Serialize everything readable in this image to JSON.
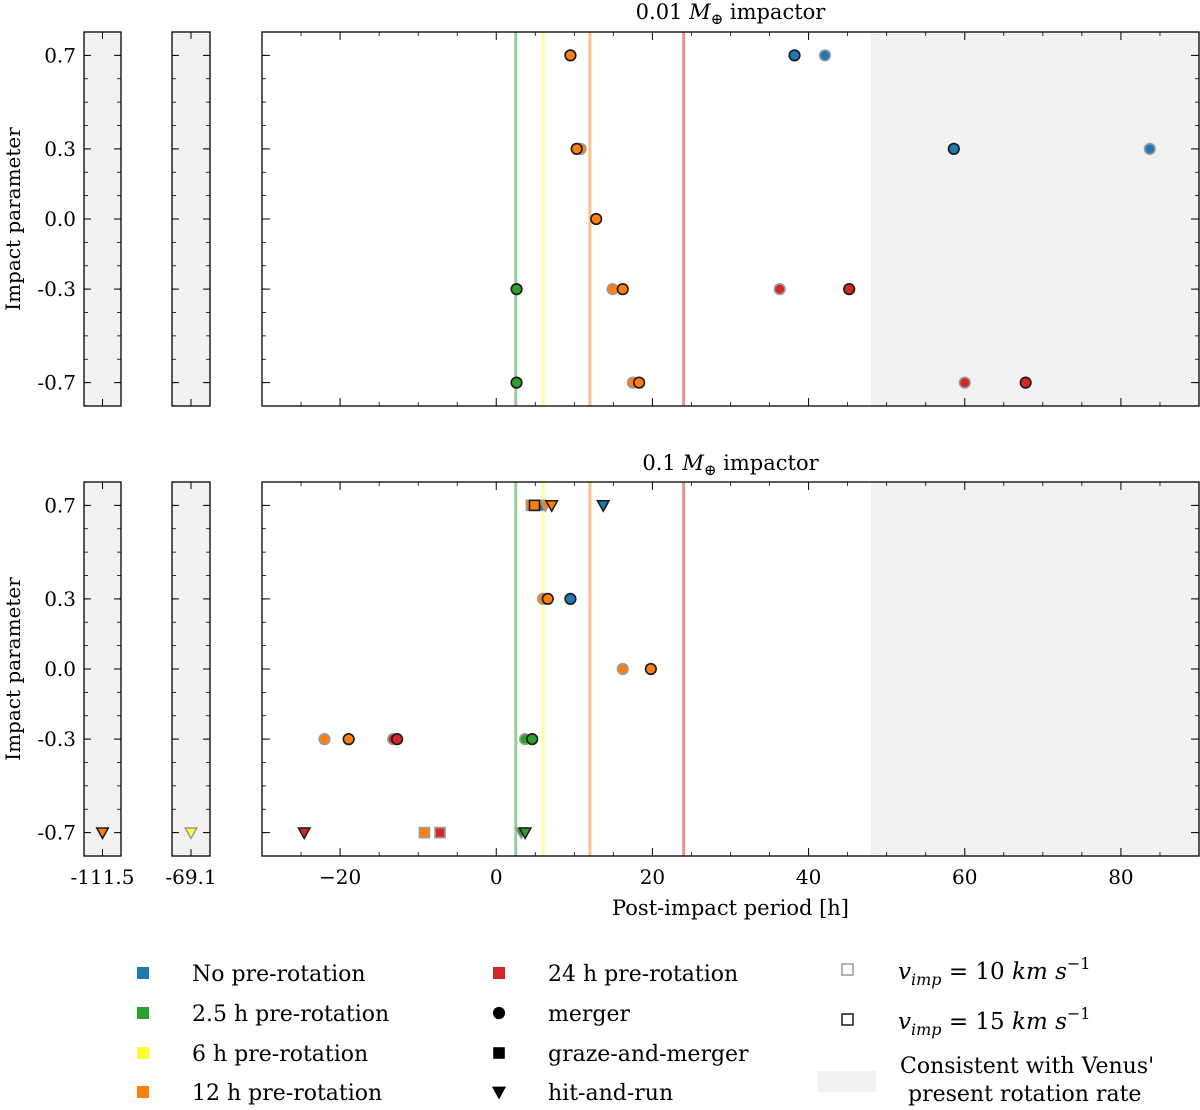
{
  "colors": {
    "no_prerot": "#1f77b4",
    "prerot_2_5": "#2ca02c",
    "prerot_6": "#ffff33",
    "prerot_12": "#ff7f0e",
    "prerot_24": "#d62728",
    "shade": "#f2f2f2"
  },
  "chart_data": [
    {
      "type": "scatter",
      "title_value": "0.01",
      "title_unit": "M",
      "title_sub": "⊕",
      "title_suffix": " impactor",
      "ylabel": "Impact parameter",
      "xlabel": "",
      "xlim": [
        -30,
        90
      ],
      "xticks": [],
      "ylim_b": [
        -0.8,
        0.8
      ],
      "yticks": [
        {
          "b": 0.7,
          "label": "0.7"
        },
        {
          "b": 0.3,
          "label": "0.3"
        },
        {
          "b": 0.0,
          "label": "0.0"
        },
        {
          "b": -0.3,
          "label": "-0.3"
        },
        {
          "b": -0.7,
          "label": "-0.7"
        }
      ],
      "shaded_region": [
        48,
        90
      ],
      "vlines": [
        {
          "x": 2.5,
          "color": "prerot_2_5"
        },
        {
          "x": 6,
          "color": "prerot_6"
        },
        {
          "x": 12,
          "color": "prerot_12"
        },
        {
          "x": 24,
          "color": "prerot_24"
        }
      ],
      "broken_axes": [
        {
          "tick_label": "",
          "points": []
        },
        {
          "tick_label": "",
          "points": []
        }
      ],
      "points": [
        {
          "x": 9.5,
          "b": 0.7,
          "color": "prerot_12",
          "outcome": "merger",
          "v": 10
        },
        {
          "x": 9.5,
          "b": 0.7,
          "color": "prerot_12",
          "outcome": "merger",
          "v": 15
        },
        {
          "x": 38.2,
          "b": 0.7,
          "color": "no_prerot",
          "outcome": "merger",
          "v": 15
        },
        {
          "x": 42.1,
          "b": 0.7,
          "color": "no_prerot",
          "outcome": "merger",
          "v": 10
        },
        {
          "x": 10.8,
          "b": 0.3,
          "color": "prerot_12",
          "outcome": "merger",
          "v": 10
        },
        {
          "x": 10.3,
          "b": 0.3,
          "color": "prerot_12",
          "outcome": "merger",
          "v": 15
        },
        {
          "x": 58.6,
          "b": 0.3,
          "color": "no_prerot",
          "outcome": "merger",
          "v": 15
        },
        {
          "x": 83.7,
          "b": 0.3,
          "color": "no_prerot",
          "outcome": "merger",
          "v": 10
        },
        {
          "x": 12.8,
          "b": 0.0,
          "color": "prerot_12",
          "outcome": "merger",
          "v": 15
        },
        {
          "x": 2.6,
          "b": -0.3,
          "color": "prerot_2_5",
          "outcome": "merger",
          "v": 15
        },
        {
          "x": 14.9,
          "b": -0.3,
          "color": "prerot_12",
          "outcome": "merger",
          "v": 10
        },
        {
          "x": 16.2,
          "b": -0.3,
          "color": "prerot_12",
          "outcome": "merger",
          "v": 15
        },
        {
          "x": 36.3,
          "b": -0.3,
          "color": "prerot_24",
          "outcome": "merger",
          "v": 10
        },
        {
          "x": 45.2,
          "b": -0.3,
          "color": "prerot_24",
          "outcome": "merger",
          "v": 15
        },
        {
          "x": 2.6,
          "b": -0.7,
          "color": "prerot_2_5",
          "outcome": "merger",
          "v": 15
        },
        {
          "x": 17.5,
          "b": -0.7,
          "color": "prerot_12",
          "outcome": "merger",
          "v": 10
        },
        {
          "x": 18.3,
          "b": -0.7,
          "color": "prerot_12",
          "outcome": "merger",
          "v": 15
        },
        {
          "x": 60.0,
          "b": -0.7,
          "color": "prerot_24",
          "outcome": "merger",
          "v": 10
        },
        {
          "x": 67.8,
          "b": -0.7,
          "color": "prerot_24",
          "outcome": "merger",
          "v": 15
        }
      ]
    },
    {
      "type": "scatter",
      "title_value": "0.1",
      "title_unit": "M",
      "title_sub": "⊕",
      "title_suffix": " impactor",
      "ylabel": "Impact parameter",
      "xlabel": "Post-impact period [h]",
      "xlim": [
        -30,
        90
      ],
      "xticks": [
        {
          "x": -20,
          "label": "−20"
        },
        {
          "x": 0,
          "label": "0"
        },
        {
          "x": 20,
          "label": "20"
        },
        {
          "x": 40,
          "label": "40"
        },
        {
          "x": 60,
          "label": "60"
        },
        {
          "x": 80,
          "label": "80"
        }
      ],
      "ylim_b": [
        -0.8,
        0.8
      ],
      "yticks": [
        {
          "b": 0.7,
          "label": "0.7"
        },
        {
          "b": 0.3,
          "label": "0.3"
        },
        {
          "b": 0.0,
          "label": "0.0"
        },
        {
          "b": -0.3,
          "label": "-0.3"
        },
        {
          "b": -0.7,
          "label": "-0.7"
        }
      ],
      "shaded_region": [
        48,
        90
      ],
      "vlines": [
        {
          "x": 2.5,
          "color": "prerot_2_5"
        },
        {
          "x": 6,
          "color": "prerot_6"
        },
        {
          "x": 12,
          "color": "prerot_12"
        },
        {
          "x": 24,
          "color": "prerot_24"
        }
      ],
      "broken_axes": [
        {
          "tick_label": "-111.5",
          "points": [
            {
              "b": -0.7,
              "color": "prerot_12",
              "outcome": "hit-and-run",
              "v": 15
            }
          ]
        },
        {
          "tick_label": "-69.1",
          "points": [
            {
              "b": -0.7,
              "color": "prerot_6",
              "outcome": "hit-and-run",
              "v": 10
            }
          ]
        }
      ],
      "points": [
        {
          "x": 4.5,
          "b": 0.7,
          "color": "prerot_12",
          "outcome": "graze-and-merger",
          "v": 10
        },
        {
          "x": 4.9,
          "b": 0.7,
          "color": "prerot_12",
          "outcome": "graze-and-merger",
          "v": 15
        },
        {
          "x": 5.7,
          "b": 0.7,
          "color": "no_prerot",
          "outcome": "graze-and-merger",
          "v": 10
        },
        {
          "x": 6.3,
          "b": 0.7,
          "color": "prerot_12",
          "outcome": "hit-and-run",
          "v": 10
        },
        {
          "x": 7.1,
          "b": 0.7,
          "color": "prerot_12",
          "outcome": "hit-and-run",
          "v": 15
        },
        {
          "x": 13.7,
          "b": 0.7,
          "color": "no_prerot",
          "outcome": "hit-and-run",
          "v": 15
        },
        {
          "x": 6.0,
          "b": 0.3,
          "color": "prerot_12",
          "outcome": "merger",
          "v": 10
        },
        {
          "x": 6.6,
          "b": 0.3,
          "color": "prerot_12",
          "outcome": "merger",
          "v": 15
        },
        {
          "x": 9.5,
          "b": 0.3,
          "color": "no_prerot",
          "outcome": "merger",
          "v": 15
        },
        {
          "x": 16.2,
          "b": 0.0,
          "color": "prerot_12",
          "outcome": "merger",
          "v": 10
        },
        {
          "x": 19.8,
          "b": 0.0,
          "color": "prerot_12",
          "outcome": "merger",
          "v": 15
        },
        {
          "x": -22.0,
          "b": -0.3,
          "color": "prerot_12",
          "outcome": "merger",
          "v": 10
        },
        {
          "x": -18.9,
          "b": -0.3,
          "color": "prerot_12",
          "outcome": "merger",
          "v": 15
        },
        {
          "x": -13.2,
          "b": -0.3,
          "color": "prerot_24",
          "outcome": "merger",
          "v": 10
        },
        {
          "x": -12.7,
          "b": -0.3,
          "color": "prerot_24",
          "outcome": "merger",
          "v": 15
        },
        {
          "x": 3.7,
          "b": -0.3,
          "color": "prerot_2_5",
          "outcome": "merger",
          "v": 10
        },
        {
          "x": 4.6,
          "b": -0.3,
          "color": "prerot_2_5",
          "outcome": "merger",
          "v": 15
        },
        {
          "x": -24.6,
          "b": -0.7,
          "color": "prerot_24",
          "outcome": "hit-and-run",
          "v": 15
        },
        {
          "x": -9.2,
          "b": -0.7,
          "color": "prerot_12",
          "outcome": "graze-and-merger",
          "v": 10
        },
        {
          "x": -7.2,
          "b": -0.7,
          "color": "prerot_24",
          "outcome": "graze-and-merger",
          "v": 10
        },
        {
          "x": 3.2,
          "b": -0.7,
          "color": "prerot_2_5",
          "outcome": "hit-and-run",
          "v": 10
        },
        {
          "x": 3.7,
          "b": -0.7,
          "color": "prerot_2_5",
          "outcome": "hit-and-run",
          "v": 15
        }
      ]
    }
  ],
  "legend": {
    "colors": [
      {
        "label": "No pre-rotation",
        "color": "no_prerot"
      },
      {
        "label": "2.5 h pre-rotation",
        "color": "prerot_2_5"
      },
      {
        "label": "6 h pre-rotation",
        "color": "prerot_6"
      },
      {
        "label": "12 h pre-rotation",
        "color": "prerot_12"
      },
      {
        "label": "24 h pre-rotation",
        "color": "prerot_24"
      }
    ],
    "outcomes": [
      {
        "label": "merger",
        "marker": "circle"
      },
      {
        "label": "graze-and-merger",
        "marker": "square"
      },
      {
        "label": "hit-and-run",
        "marker": "triangle"
      }
    ],
    "velocities": [
      {
        "sym": "v",
        "sub": "imp",
        "value": " = 10 ",
        "unit": "km s",
        "exp": "−1",
        "edge": "light"
      },
      {
        "sym": "v",
        "sub": "imp",
        "value": " = 15 ",
        "unit": "km s",
        "exp": "−1",
        "edge": "dark"
      }
    ],
    "shade_label_1": "Consistent with Venus'",
    "shade_label_2": "present rotation rate"
  }
}
